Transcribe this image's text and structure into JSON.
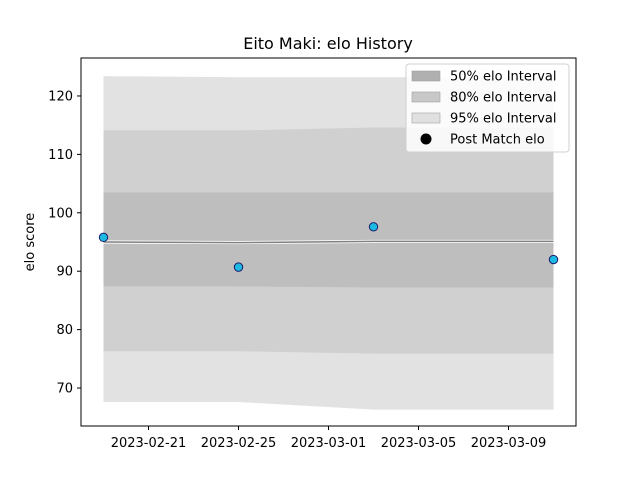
{
  "chart_data": {
    "type": "line",
    "title": "Eito Maki: elo History",
    "xlabel": "",
    "ylabel": "elo score",
    "xlim": [
      "2023-02-18",
      "2023-03-12"
    ],
    "ylim": [
      63.5,
      126.5
    ],
    "x_ticks": [
      "2023-02-21",
      "2023-02-25",
      "2023-03-01",
      "2023-03-05",
      "2023-03-09"
    ],
    "y_ticks": [
      70,
      80,
      90,
      100,
      110,
      120
    ],
    "x": [
      "2023-02-19",
      "2023-02-25",
      "2023-03-03",
      "2023-03-11"
    ],
    "series": [
      {
        "name": "Mean",
        "values": [
          95.0,
          94.9,
          95.1,
          95.1
        ],
        "color": "#808080"
      },
      {
        "name": "Post Match elo",
        "values": [
          95.8,
          90.7,
          97.6,
          92.0
        ],
        "color": "#1cb9e0",
        "edge": "#1a1a6e"
      }
    ],
    "bands": [
      {
        "name": "95% elo Interval",
        "lower": [
          67.6,
          67.6,
          66.3,
          66.3
        ],
        "upper": [
          123.4,
          123.2,
          123.2,
          123.2
        ],
        "color": "#e2e2e2"
      },
      {
        "name": "80% elo Interval",
        "lower": [
          76.3,
          76.3,
          75.9,
          75.9
        ],
        "upper": [
          114.1,
          114.1,
          114.6,
          114.6
        ],
        "color": "#d0d0d0"
      },
      {
        "name": "50% elo Interval",
        "lower": [
          87.4,
          87.4,
          87.2,
          87.2
        ],
        "upper": [
          103.5,
          103.5,
          103.5,
          103.5
        ],
        "color": "#bebebe"
      }
    ],
    "legend": {
      "position": "top-right",
      "entries": [
        {
          "label": "50% elo Interval",
          "kind": "patch",
          "color": "#b0b0b0"
        },
        {
          "label": "80% elo Interval",
          "kind": "patch",
          "color": "#c8c8c8"
        },
        {
          "label": "95% elo Interval",
          "kind": "patch",
          "color": "#e0e0e0"
        },
        {
          "label": "Post Match elo",
          "kind": "marker",
          "color": "#000000"
        }
      ]
    },
    "grid": false
  }
}
